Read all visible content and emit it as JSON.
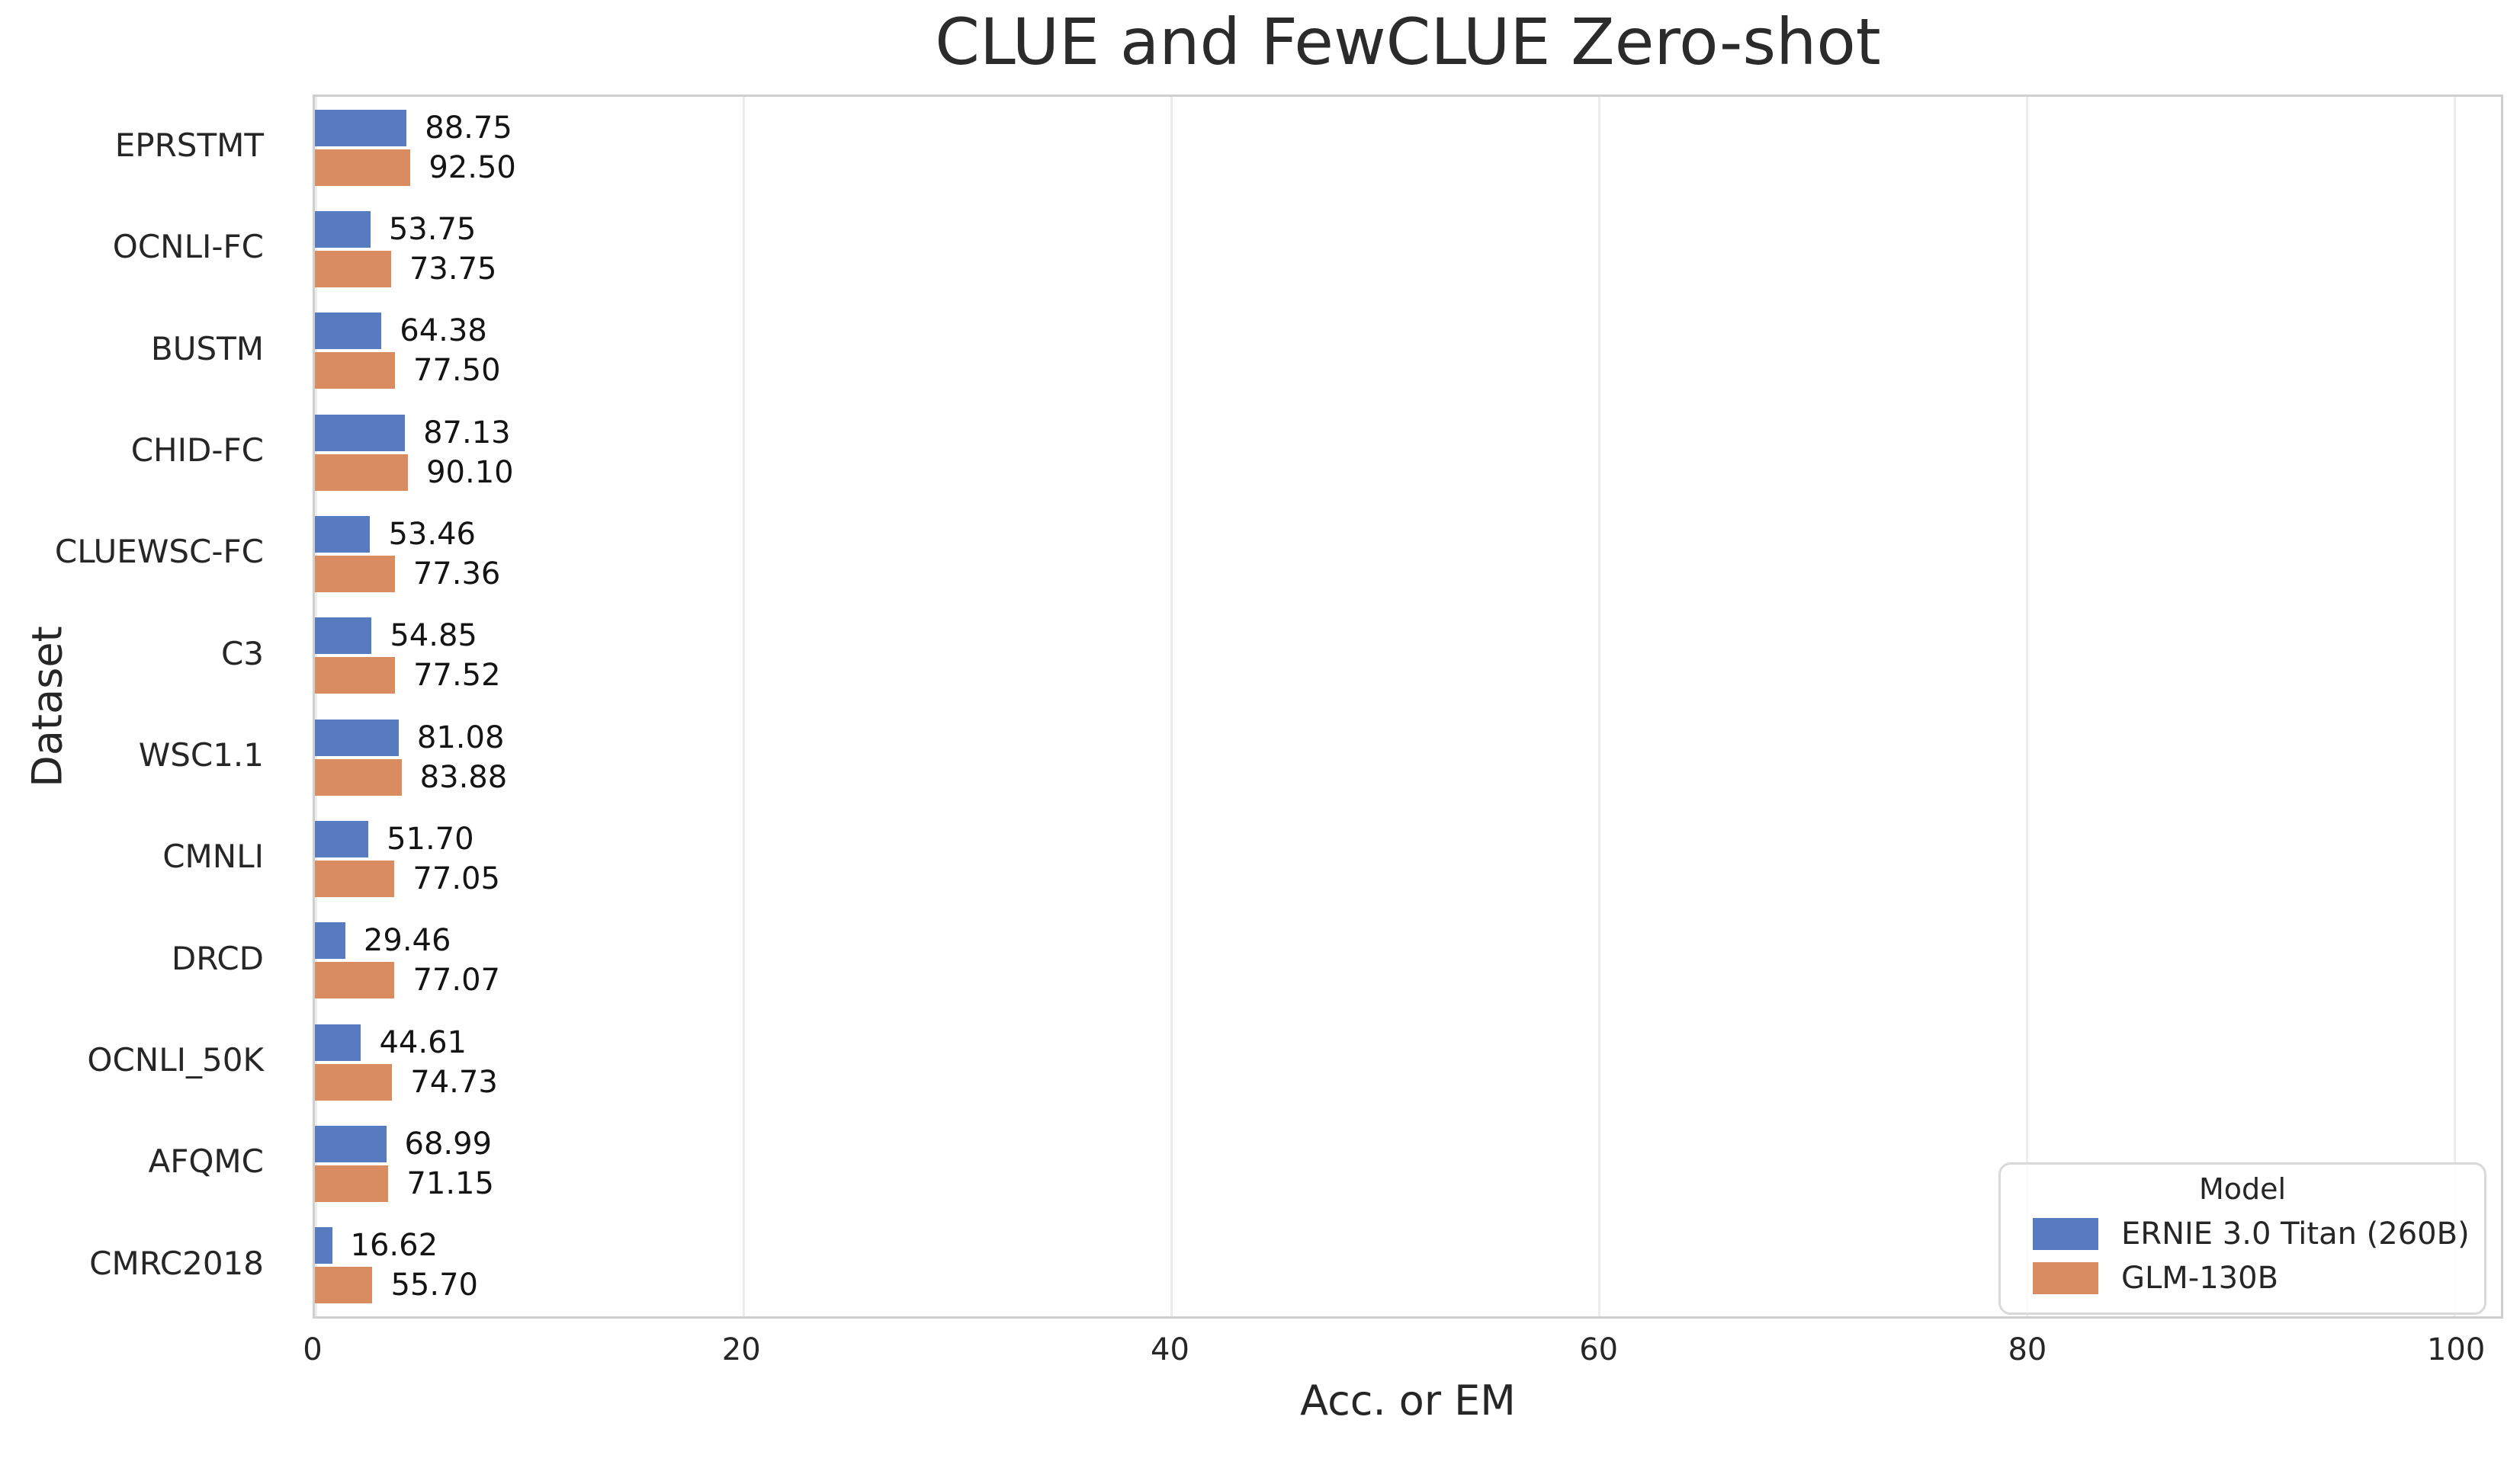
{
  "chart_data": {
    "type": "bar",
    "orientation": "horizontal",
    "title": "CLUE and FewCLUE Zero-shot",
    "xlabel": "Acc. or EM",
    "ylabel": "Dataset",
    "categories": [
      "EPRSTMT",
      "OCNLI-FC",
      "BUSTM",
      "CHID-FC",
      "CLUEWSC-FC",
      "C3",
      "WSC1.1",
      "CMNLI",
      "DRCD",
      "OCNLI_50K",
      "AFQMC",
      "CMRC2018"
    ],
    "series": [
      {
        "name": "ERNIE 3.0 Titan (260B)",
        "color": "#587bbf",
        "values": [
          88.75,
          53.75,
          64.38,
          87.13,
          53.46,
          54.85,
          81.08,
          51.7,
          29.46,
          44.61,
          68.99,
          16.62
        ],
        "labels": [
          "88.75",
          "53.75",
          "64.38",
          "87.13",
          "53.46",
          "54.85",
          "81.08",
          "51.70",
          "29.46",
          "44.61",
          "68.99",
          "16.62"
        ]
      },
      {
        "name": "GLM-130B",
        "color": "#d88c5f",
        "values": [
          92.5,
          73.75,
          77.5,
          90.1,
          77.36,
          77.52,
          83.88,
          77.05,
          77.07,
          74.73,
          71.15,
          55.7
        ],
        "labels": [
          "92.50",
          "73.75",
          "77.50",
          "90.10",
          "77.36",
          "77.52",
          "83.88",
          "77.05",
          "77.07",
          "74.73",
          "71.15",
          "55.70"
        ]
      }
    ],
    "xticks": [
      0,
      20,
      40,
      60,
      80,
      100
    ],
    "xlim": [
      0,
      102.2
    ],
    "grid": "vertical",
    "legend": {
      "title": "Model",
      "position": "lower right"
    }
  }
}
